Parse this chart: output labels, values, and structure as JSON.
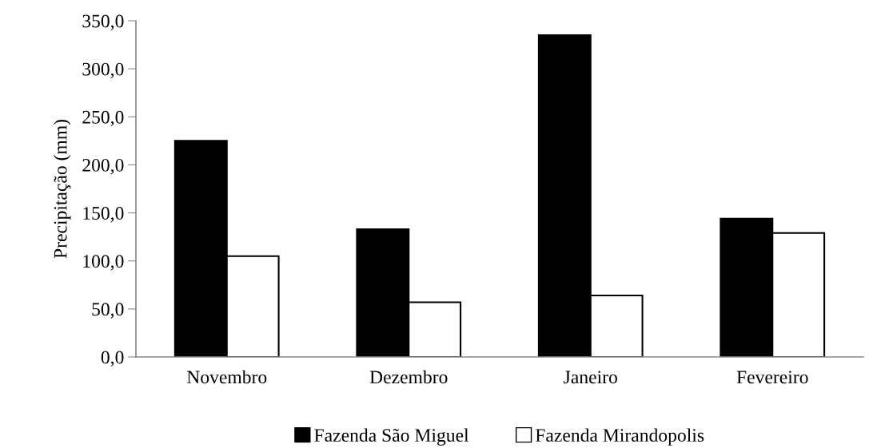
{
  "chart_data": {
    "type": "bar",
    "ylabel": "Precipitação (mm)",
    "categories": [
      "Novembro",
      "Dezembro",
      "Janeiro",
      "Fevereiro"
    ],
    "series": [
      {
        "name": "Fazenda São Miguel",
        "color": "#000000",
        "values": [
          225,
          133,
          335,
          144
        ]
      },
      {
        "name": "Fazenda Mirandopolis",
        "color": "#ffffff",
        "values": [
          105,
          57,
          64,
          129
        ]
      }
    ],
    "ylim": [
      0,
      350
    ],
    "yticks": [
      {
        "value": 0,
        "label": "0,0"
      },
      {
        "value": 50,
        "label": "50,0"
      },
      {
        "value": 100,
        "label": "100,0"
      },
      {
        "value": 150,
        "label": "150,0"
      },
      {
        "value": 200,
        "label": "200,0"
      },
      {
        "value": 250,
        "label": "250,0"
      },
      {
        "value": 300,
        "label": "300,0"
      },
      {
        "value": 350,
        "label": "350,0"
      }
    ],
    "grid": false,
    "legend": "bottom"
  }
}
